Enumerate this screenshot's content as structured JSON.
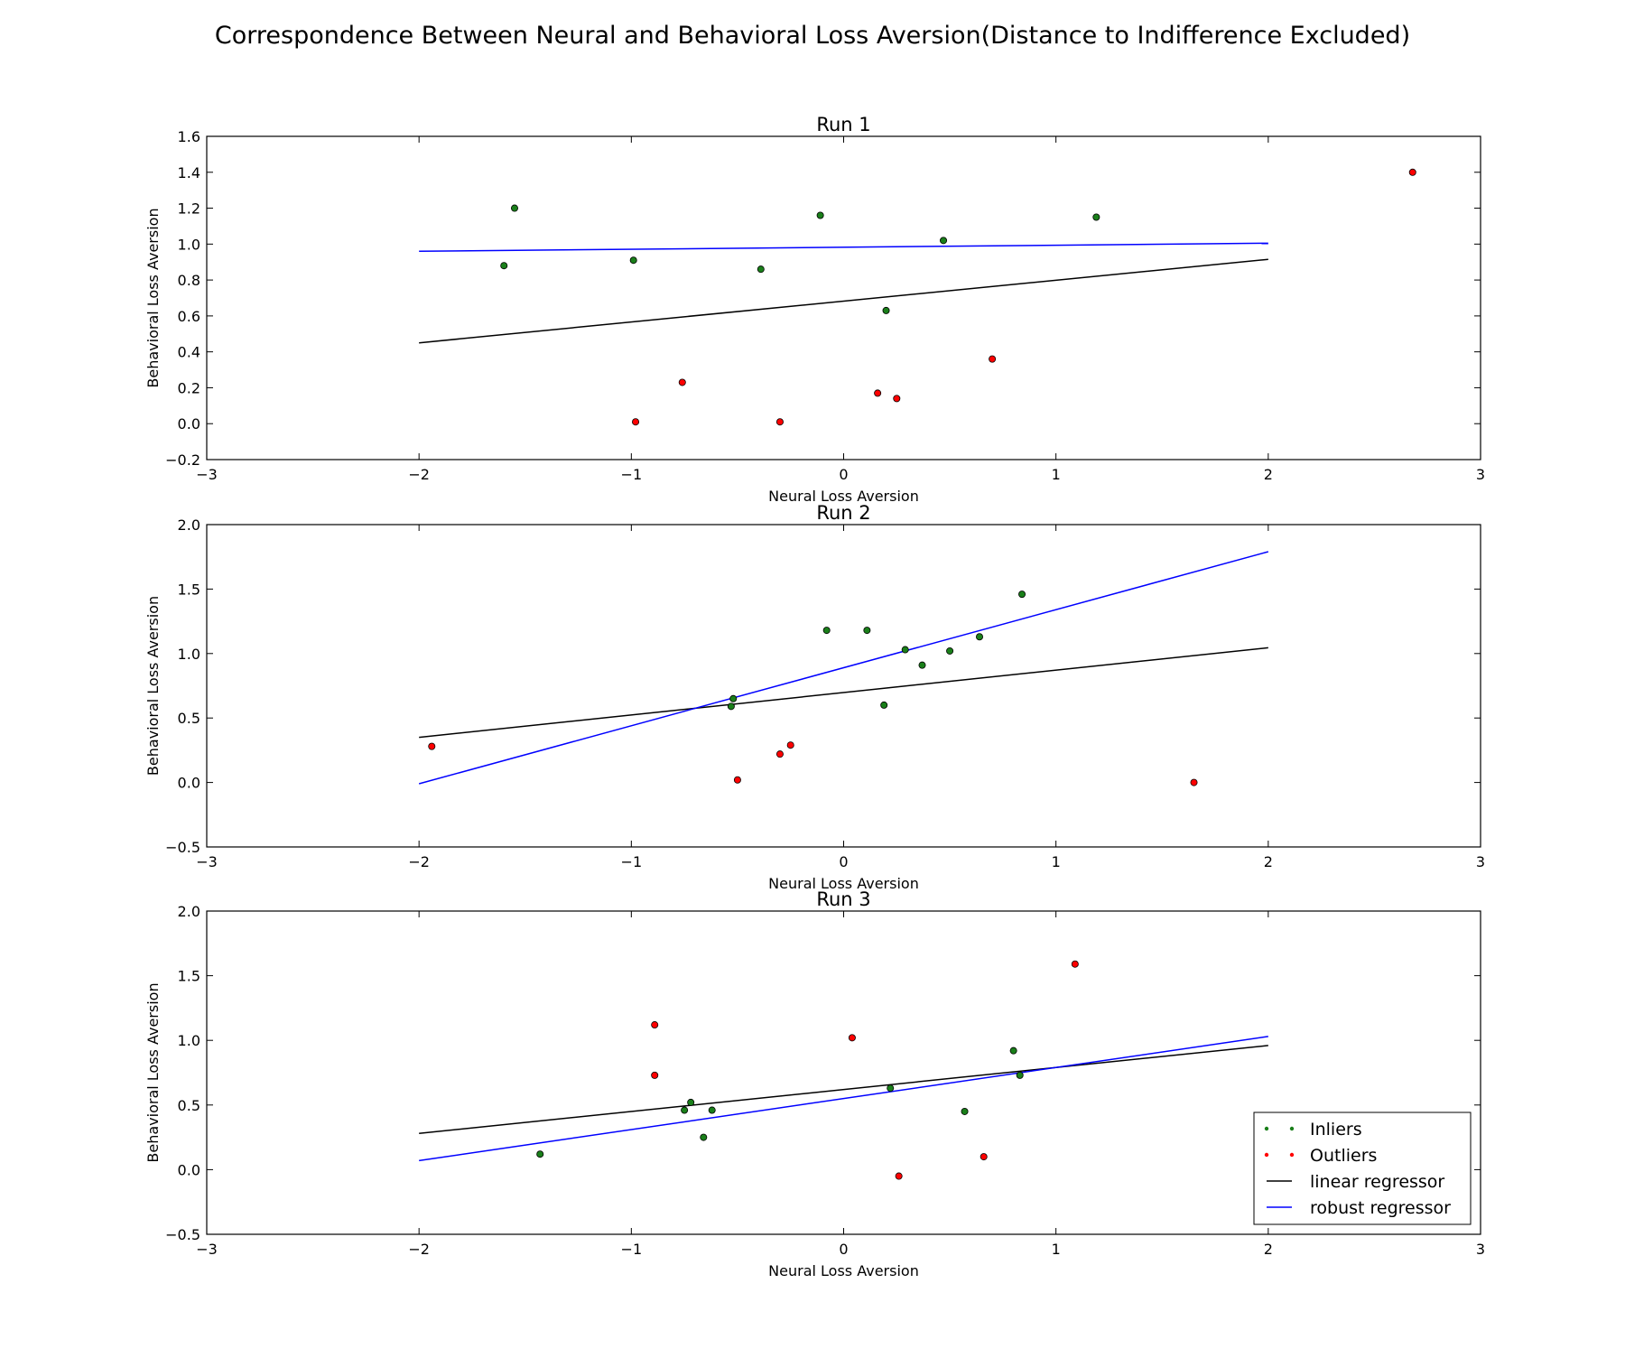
{
  "title": "Correspondence Between Neural and Behavioral Loss Aversion(Distance to Indifference Excluded)",
  "colors": {
    "inliers": "#1a7f1a",
    "outliers": "#ff0000",
    "linear": "#000000",
    "robust": "#0000ff"
  },
  "legend": {
    "placement": "lower-right",
    "entries": [
      {
        "label": "Inliers",
        "kind": "dots",
        "color": "#1a7f1a"
      },
      {
        "label": "Outliers",
        "kind": "dots",
        "color": "#ff0000"
      },
      {
        "label": "linear regressor",
        "kind": "line",
        "color": "#000000"
      },
      {
        "label": "robust regressor",
        "kind": "line",
        "color": "#0000ff"
      }
    ]
  },
  "chart_data": [
    {
      "type": "scatter",
      "title": "Run 1",
      "xlabel": "Neural Loss Aversion",
      "ylabel": "Behavioral Loss Aversion",
      "xlim": [
        -3,
        3
      ],
      "ylim": [
        -0.2,
        1.6
      ],
      "xticks": [
        -3,
        -2,
        -1,
        0,
        1,
        2,
        3
      ],
      "xtick_labels": [
        "−3",
        "−2",
        "−1",
        "0",
        "1",
        "2",
        "3"
      ],
      "yticks": [
        -0.2,
        0.0,
        0.2,
        0.4,
        0.6,
        0.8,
        1.0,
        1.2,
        1.4,
        1.6
      ],
      "ytick_labels": [
        "−0.2",
        "0.0",
        "0.2",
        "0.4",
        "0.6",
        "0.8",
        "1.0",
        "1.2",
        "1.4",
        "1.6"
      ],
      "inliers": [
        [
          -1.55,
          1.2
        ],
        [
          -1.6,
          0.88
        ],
        [
          -0.99,
          0.91
        ],
        [
          -0.39,
          0.86
        ],
        [
          -0.11,
          1.16
        ],
        [
          0.2,
          0.63
        ],
        [
          0.47,
          1.02
        ],
        [
          1.19,
          1.15
        ]
      ],
      "outliers": [
        [
          -0.98,
          0.01
        ],
        [
          -0.76,
          0.23
        ],
        [
          -0.3,
          0.01
        ],
        [
          0.16,
          0.17
        ],
        [
          0.25,
          0.14
        ],
        [
          0.7,
          0.36
        ],
        [
          2.68,
          1.4
        ]
      ],
      "linear_regressor": [
        [
          -2,
          0.45
        ],
        [
          2,
          0.915
        ]
      ],
      "robust_regressor": [
        [
          -2,
          0.96
        ],
        [
          2,
          1.005
        ]
      ]
    },
    {
      "type": "scatter",
      "title": "Run 2",
      "xlabel": "Neural Loss Aversion",
      "ylabel": "Behavioral Loss Aversion",
      "xlim": [
        -3,
        3
      ],
      "ylim": [
        -0.5,
        2.0
      ],
      "xticks": [
        -3,
        -2,
        -1,
        0,
        1,
        2,
        3
      ],
      "xtick_labels": [
        "−3",
        "−2",
        "−1",
        "0",
        "1",
        "2",
        "3"
      ],
      "yticks": [
        -0.5,
        0.0,
        0.5,
        1.0,
        1.5,
        2.0
      ],
      "ytick_labels": [
        "−0.5",
        "0.0",
        "0.5",
        "1.0",
        "1.5",
        "2.0"
      ],
      "inliers": [
        [
          -0.52,
          0.65
        ],
        [
          -0.53,
          0.59
        ],
        [
          -0.08,
          1.18
        ],
        [
          0.11,
          1.18
        ],
        [
          0.29,
          1.03
        ],
        [
          0.37,
          0.91
        ],
        [
          0.19,
          0.6
        ],
        [
          0.5,
          1.02
        ],
        [
          0.64,
          1.13
        ],
        [
          0.84,
          1.46
        ]
      ],
      "outliers": [
        [
          -1.94,
          0.28
        ],
        [
          -0.5,
          0.02
        ],
        [
          -0.3,
          0.22
        ],
        [
          -0.25,
          0.29
        ],
        [
          1.65,
          0.0
        ]
      ],
      "linear_regressor": [
        [
          -2,
          0.35
        ],
        [
          2,
          1.045
        ]
      ],
      "robust_regressor": [
        [
          -2,
          -0.01
        ],
        [
          2,
          1.79
        ]
      ]
    },
    {
      "type": "scatter",
      "title": "Run 3",
      "xlabel": "Neural Loss Aversion",
      "ylabel": "Behavioral Loss Aversion",
      "xlim": [
        -3,
        3
      ],
      "ylim": [
        -0.5,
        2.0
      ],
      "xticks": [
        -3,
        -2,
        -1,
        0,
        1,
        2,
        3
      ],
      "xtick_labels": [
        "−3",
        "−2",
        "−1",
        "0",
        "1",
        "2",
        "3"
      ],
      "yticks": [
        -0.5,
        0.0,
        0.5,
        1.0,
        1.5,
        2.0
      ],
      "ytick_labels": [
        "−0.5",
        "0.0",
        "0.5",
        "1.0",
        "1.5",
        "2.0"
      ],
      "inliers": [
        [
          -1.43,
          0.12
        ],
        [
          -0.75,
          0.46
        ],
        [
          -0.72,
          0.52
        ],
        [
          -0.66,
          0.25
        ],
        [
          -0.62,
          0.46
        ],
        [
          0.22,
          0.63
        ],
        [
          0.57,
          0.45
        ],
        [
          0.8,
          0.92
        ],
        [
          0.83,
          0.73
        ]
      ],
      "outliers": [
        [
          -0.89,
          1.12
        ],
        [
          -0.89,
          0.73
        ],
        [
          0.04,
          1.02
        ],
        [
          0.26,
          -0.05
        ],
        [
          0.66,
          0.1
        ],
        [
          1.09,
          1.59
        ]
      ],
      "linear_regressor": [
        [
          -2,
          0.28
        ],
        [
          2,
          0.96
        ]
      ],
      "robust_regressor": [
        [
          -2,
          0.07
        ],
        [
          2,
          1.03
        ]
      ]
    }
  ]
}
